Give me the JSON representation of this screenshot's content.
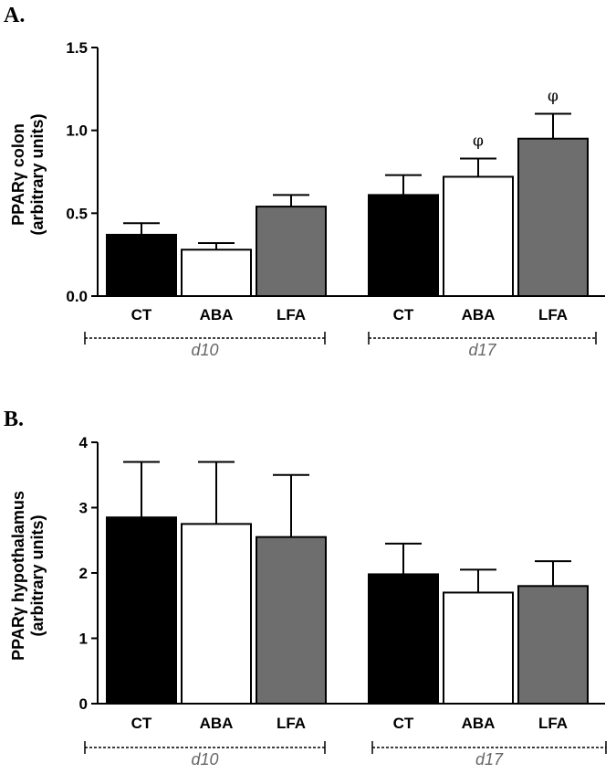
{
  "colors": {
    "CT": "#000000",
    "ABA": "#ffffff",
    "LFA": "#6e6e6e"
  },
  "chart_data": [
    {
      "type": "bar",
      "panel_label": "A.",
      "ylabel_line1": "PPARγ colon",
      "ylabel_line2": "(arbitrary units)",
      "ylim": [
        0,
        1.5
      ],
      "yticks": [
        "0.0",
        "0.5",
        "1.0",
        "1.5"
      ],
      "ytick_values": [
        0,
        0.5,
        1.0,
        1.5
      ],
      "categories": [
        "CT",
        "ABA",
        "LFA",
        "CT",
        "ABA",
        "LFA"
      ],
      "groups": [
        "d10",
        "d17"
      ],
      "values": [
        0.37,
        0.28,
        0.54,
        0.61,
        0.72,
        0.95
      ],
      "errors": [
        0.07,
        0.04,
        0.07,
        0.12,
        0.11,
        0.15
      ],
      "annotations": [
        "",
        "",
        "",
        "",
        "φ",
        "φ"
      ]
    },
    {
      "type": "bar",
      "panel_label": "B.",
      "ylabel_line1": "PPARγ hypothalamus",
      "ylabel_line2": "(arbitrary units)",
      "ylim": [
        0,
        4
      ],
      "yticks": [
        "0",
        "1",
        "2",
        "3",
        "4"
      ],
      "ytick_values": [
        0,
        1,
        2,
        3,
        4
      ],
      "categories": [
        "CT",
        "ABA",
        "LFA",
        "CT",
        "ABA",
        "LFA"
      ],
      "groups": [
        "d10",
        "d17"
      ],
      "values": [
        2.85,
        2.75,
        2.55,
        1.98,
        1.7,
        1.8
      ],
      "errors": [
        0.85,
        0.95,
        0.95,
        0.47,
        0.35,
        0.38
      ],
      "annotations": [
        "",
        "",
        "",
        "",
        "",
        ""
      ]
    }
  ]
}
